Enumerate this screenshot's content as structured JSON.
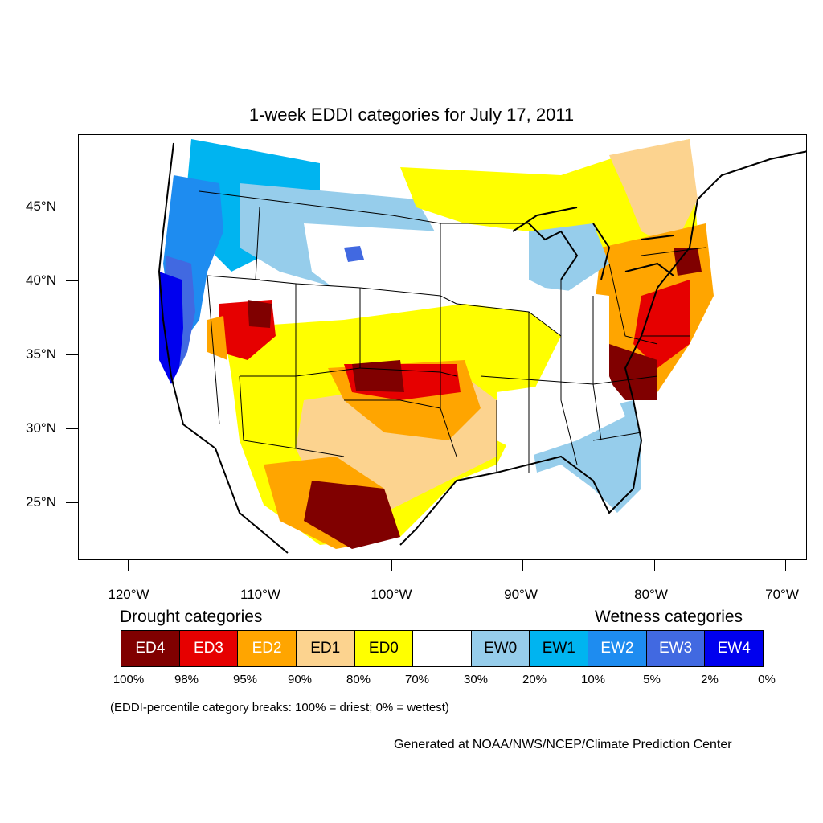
{
  "title": "1-week EDDI categories for July 17, 2011",
  "y_axis": [
    {
      "label": "45°N"
    },
    {
      "label": "40°N"
    },
    {
      "label": "35°N"
    },
    {
      "label": "30°N"
    },
    {
      "label": "25°N"
    }
  ],
  "x_axis": [
    {
      "label": "120°W"
    },
    {
      "label": "110°W"
    },
    {
      "label": "100°W"
    },
    {
      "label": "90°W"
    },
    {
      "label": "80°W"
    },
    {
      "label": "70°W"
    }
  ],
  "legend": {
    "drought_heading": "Drought categories",
    "wetness_heading": "Wetness categories",
    "categories": [
      {
        "label": "ED4",
        "color": "#800000",
        "text_color": "#ffffff"
      },
      {
        "label": "ED3",
        "color": "#e60000",
        "text_color": "#ffffff"
      },
      {
        "label": "ED2",
        "color": "#ffa500",
        "text_color": "#ffffff"
      },
      {
        "label": "ED1",
        "color": "#fcd38f",
        "text_color": "#000000"
      },
      {
        "label": "ED0",
        "color": "#ffff00",
        "text_color": "#000000"
      },
      {
        "label": "",
        "color": "#ffffff",
        "text_color": "#000000"
      },
      {
        "label": "EW0",
        "color": "#96cdeb",
        "text_color": "#000000"
      },
      {
        "label": "EW1",
        "color": "#00b4f0",
        "text_color": "#000000"
      },
      {
        "label": "EW2",
        "color": "#1e8cf0",
        "text_color": "#ffffff"
      },
      {
        "label": "EW3",
        "color": "#4169e1",
        "text_color": "#ffffff"
      },
      {
        "label": "EW4",
        "color": "#0000ee",
        "text_color": "#ffffff"
      }
    ],
    "percentiles": [
      "100%",
      "98%",
      "95%",
      "90%",
      "80%",
      "70%",
      "30%",
      "20%",
      "10%",
      "5%",
      "2%",
      "0%"
    ]
  },
  "note": "(EDDI-percentile category breaks: 100% = driest; 0% = wettest)",
  "credit": "Generated at NOAA/NWS/NCEP/Climate Prediction Center"
}
